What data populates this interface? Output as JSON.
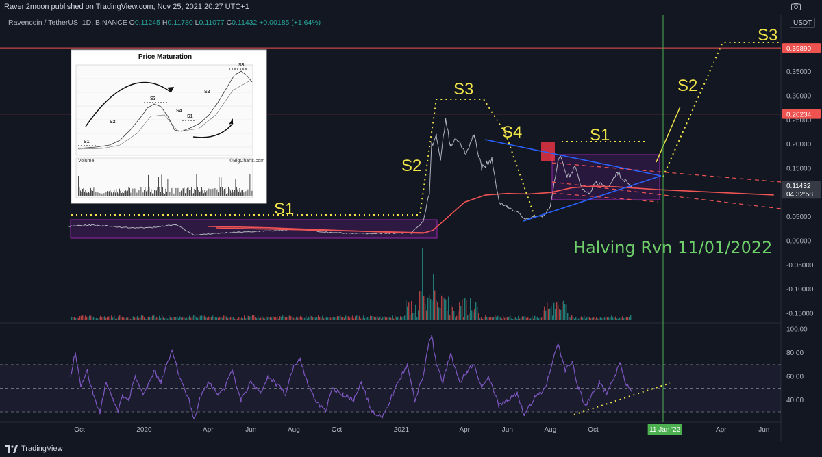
{
  "header": {
    "publisher": "Raven2moon published on TradingView.com, Nov 25, 2021 20:27 UTC+1",
    "symbol": "Ravencoin / TetherUS, 1D, BINANCE",
    "o_label": "O",
    "o": "0.11245",
    "h_label": "H",
    "h": "0.11780",
    "l_label": "L",
    "l": "0.11077",
    "c_label": "C",
    "c": "0.11432",
    "change": "+0.00185 (+1.64%)",
    "currency": "USDT"
  },
  "colors": {
    "background": "#131722",
    "price_line": "#ef5350",
    "sma": "#f05454",
    "trendline": "#2962ff",
    "annotation": "#f0e44a",
    "rsi": "#7e57c2",
    "halving_line": "#4caf50",
    "box": "#7b1fa2"
  },
  "chart_data": [
    {
      "type": "line",
      "name": "price",
      "y_ticks": [
        "0.35000",
        "0.30000",
        "0.25000",
        "0.20000",
        "0.15000",
        "0.10000",
        "0.05000",
        "0.00000",
        "-0.05000",
        "-0.10000",
        "-0.15000"
      ],
      "y_tick_values": [
        0.35,
        0.3,
        0.25,
        0.2,
        0.15,
        0.1,
        0.05,
        0.0,
        -0.05,
        -0.1,
        -0.15
      ],
      "ylim": [
        -0.165,
        0.42
      ],
      "price_tags": [
        {
          "value": 0.3989,
          "label": "0.39890",
          "color": "#ef5350"
        },
        {
          "value": 0.26234,
          "label": "0.26234",
          "color": "#ef5350"
        },
        {
          "value": 0.11432,
          "label": "0.11432",
          "color": "#363a45",
          "sub": "04:32:58"
        }
      ],
      "horizontal_lines": [
        0.3989,
        0.26234
      ],
      "x_labels": [
        "Oct",
        "2020",
        "Apr",
        "Jun",
        "Aug",
        "Oct",
        "2021",
        "Apr",
        "Jun",
        "Aug",
        "Oct",
        "11 Jan '22",
        "Apr",
        "Jun"
      ],
      "x_label_dates": [
        "2019-10-01",
        "2020-01-01",
        "2020-04-01",
        "2020-06-01",
        "2020-08-01",
        "2020-10-01",
        "2021-01-01",
        "2021-04-01",
        "2021-06-01",
        "2021-08-01",
        "2021-10-01",
        "2022-01-11",
        "2022-04-01",
        "2022-06-01"
      ],
      "price_points": [
        [
          "2019-09-15",
          0.03
        ],
        [
          "2019-10-15",
          0.033
        ],
        [
          "2019-11-15",
          0.03
        ],
        [
          "2019-12-15",
          0.027
        ],
        [
          "2020-01-15",
          0.028
        ],
        [
          "2020-02-15",
          0.034
        ],
        [
          "2020-03-13",
          0.012
        ],
        [
          "2020-04-15",
          0.016
        ],
        [
          "2020-05-15",
          0.018
        ],
        [
          "2020-06-15",
          0.02
        ],
        [
          "2020-07-15",
          0.022
        ],
        [
          "2020-08-15",
          0.024
        ],
        [
          "2020-09-15",
          0.018
        ],
        [
          "2020-10-15",
          0.016
        ],
        [
          "2020-11-15",
          0.015
        ],
        [
          "2020-12-15",
          0.016
        ],
        [
          "2021-01-15",
          0.016
        ],
        [
          "2021-02-01",
          0.04
        ],
        [
          "2021-02-10",
          0.1
        ],
        [
          "2021-02-13",
          0.2
        ],
        [
          "2021-02-20",
          0.22
        ],
        [
          "2021-02-26",
          0.17
        ],
        [
          "2021-03-05",
          0.25
        ],
        [
          "2021-03-12",
          0.2
        ],
        [
          "2021-03-20",
          0.21
        ],
        [
          "2021-04-01",
          0.18
        ],
        [
          "2021-04-15",
          0.22
        ],
        [
          "2021-04-25",
          0.15
        ],
        [
          "2021-05-10",
          0.17
        ],
        [
          "2021-05-20",
          0.08
        ],
        [
          "2021-06-01",
          0.07
        ],
        [
          "2021-06-15",
          0.06
        ],
        [
          "2021-06-25",
          0.045
        ],
        [
          "2021-07-10",
          0.05
        ],
        [
          "2021-07-21",
          0.05
        ],
        [
          "2021-08-01",
          0.07
        ],
        [
          "2021-08-10",
          0.15
        ],
        [
          "2021-08-15",
          0.18
        ],
        [
          "2021-08-25",
          0.13
        ],
        [
          "2021-09-05",
          0.15
        ],
        [
          "2021-09-15",
          0.11
        ],
        [
          "2021-09-25",
          0.1
        ],
        [
          "2021-10-05",
          0.12
        ],
        [
          "2021-10-20",
          0.11
        ],
        [
          "2021-11-05",
          0.14
        ],
        [
          "2021-11-15",
          0.125
        ],
        [
          "2021-11-25",
          0.114
        ]
      ],
      "sma_points": [
        [
          "2020-04-01",
          0.03
        ],
        [
          "2020-07-01",
          0.027
        ],
        [
          "2020-10-01",
          0.022
        ],
        [
          "2021-01-01",
          0.017
        ],
        [
          "2021-02-01",
          0.016
        ],
        [
          "2021-02-15",
          0.022
        ],
        [
          "2021-03-01",
          0.04
        ],
        [
          "2021-04-01",
          0.08
        ],
        [
          "2021-05-01",
          0.095
        ],
        [
          "2021-06-01",
          0.098
        ],
        [
          "2021-07-01",
          0.097
        ],
        [
          "2021-08-01",
          0.1
        ],
        [
          "2021-09-01",
          0.11
        ],
        [
          "2021-10-01",
          0.113
        ],
        [
          "2021-11-01",
          0.112
        ],
        [
          "2022-01-01",
          0.106
        ],
        [
          "2022-06-15",
          0.095
        ]
      ]
    },
    {
      "type": "line",
      "name": "rsi",
      "y_ticks": [
        "100.00",
        "80.00",
        "60.00",
        "40.00"
      ],
      "y_tick_values": [
        100,
        80,
        60,
        40
      ],
      "ylim": [
        20,
        102
      ],
      "band": [
        30,
        70
      ],
      "mid": 50,
      "rsi_points": [
        [
          "2019-09-18",
          60
        ],
        [
          "2019-09-25",
          80
        ],
        [
          "2019-10-03",
          50
        ],
        [
          "2019-10-12",
          65
        ],
        [
          "2019-10-20",
          45
        ],
        [
          "2019-10-30",
          30
        ],
        [
          "2019-11-08",
          55
        ],
        [
          "2019-11-18",
          40
        ],
        [
          "2019-11-25",
          30
        ],
        [
          "2019-12-01",
          44
        ],
        [
          "2019-12-10",
          40
        ],
        [
          "2019-12-20",
          60
        ],
        [
          "2019-12-30",
          45
        ],
        [
          "2020-01-05",
          50
        ],
        [
          "2020-01-15",
          65
        ],
        [
          "2020-01-25",
          55
        ],
        [
          "2020-02-02",
          70
        ],
        [
          "2020-02-10",
          82
        ],
        [
          "2020-02-20",
          60
        ],
        [
          "2020-03-05",
          40
        ],
        [
          "2020-03-12",
          22
        ],
        [
          "2020-03-20",
          40
        ],
        [
          "2020-04-01",
          55
        ],
        [
          "2020-04-15",
          45
        ],
        [
          "2020-04-25",
          50
        ],
        [
          "2020-05-05",
          65
        ],
        [
          "2020-05-18",
          40
        ],
        [
          "2020-06-01",
          55
        ],
        [
          "2020-06-15",
          45
        ],
        [
          "2020-06-25",
          60
        ],
        [
          "2020-07-05",
          55
        ],
        [
          "2020-07-20",
          45
        ],
        [
          "2020-08-01",
          68
        ],
        [
          "2020-08-10",
          75
        ],
        [
          "2020-08-20",
          55
        ],
        [
          "2020-09-01",
          40
        ],
        [
          "2020-09-15",
          30
        ],
        [
          "2020-09-25",
          50
        ],
        [
          "2020-10-10",
          45
        ],
        [
          "2020-10-25",
          40
        ],
        [
          "2020-11-05",
          55
        ],
        [
          "2020-11-20",
          30
        ],
        [
          "2020-12-05",
          25
        ],
        [
          "2020-12-20",
          45
        ],
        [
          "2021-01-01",
          60
        ],
        [
          "2021-01-10",
          70
        ],
        [
          "2021-01-20",
          40
        ],
        [
          "2021-02-01",
          60
        ],
        [
          "2021-02-08",
          85
        ],
        [
          "2021-02-13",
          95
        ],
        [
          "2021-02-20",
          70
        ],
        [
          "2021-03-01",
          55
        ],
        [
          "2021-03-12",
          80
        ],
        [
          "2021-03-25",
          55
        ],
        [
          "2021-04-05",
          65
        ],
        [
          "2021-04-15",
          70
        ],
        [
          "2021-04-25",
          50
        ],
        [
          "2021-05-05",
          60
        ],
        [
          "2021-05-20",
          35
        ],
        [
          "2021-06-01",
          40
        ],
        [
          "2021-06-15",
          45
        ],
        [
          "2021-06-25",
          28
        ],
        [
          "2021-07-10",
          42
        ],
        [
          "2021-07-25",
          50
        ],
        [
          "2021-08-05",
          75
        ],
        [
          "2021-08-12",
          88
        ],
        [
          "2021-08-22",
          65
        ],
        [
          "2021-09-01",
          72
        ],
        [
          "2021-09-10",
          50
        ],
        [
          "2021-09-20",
          35
        ],
        [
          "2021-09-30",
          45
        ],
        [
          "2021-10-10",
          55
        ],
        [
          "2021-10-20",
          45
        ],
        [
          "2021-11-01",
          60
        ],
        [
          "2021-11-08",
          73
        ],
        [
          "2021-11-15",
          55
        ],
        [
          "2021-11-25",
          48
        ]
      ]
    }
  ],
  "annotations": {
    "s1_left": "S1",
    "s2": "S2",
    "s3": "S3",
    "s4": "S4",
    "s1_right": "S1",
    "s2_future": "S2",
    "s3_future": "S3",
    "halving": "Halving Rvn 11/01/2022"
  },
  "inset": {
    "title": "Price Maturation",
    "labels": [
      "S1",
      "S2",
      "S3",
      "S4",
      "S1",
      "S2",
      "S3"
    ],
    "volume_label": "Volume",
    "credit": "©BigCharts.com"
  },
  "footer": {
    "brand": "TradingView"
  }
}
